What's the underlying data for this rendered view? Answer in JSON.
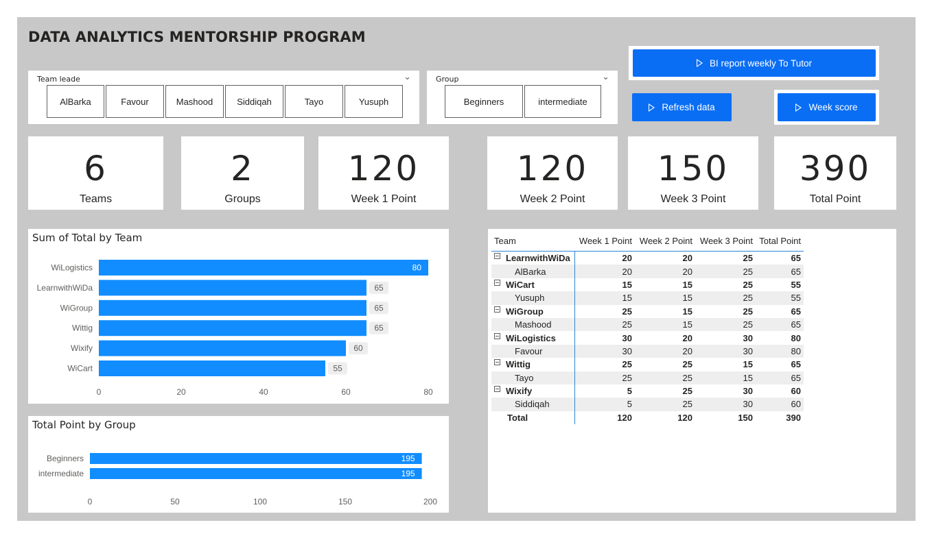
{
  "title": "DATA ANALYTICS MENTORSHIP PROGRAM",
  "team_slicer": {
    "label": "Team leade",
    "options": [
      "AlBarka",
      "Favour",
      "Mashood",
      "Siddiqah",
      "Tayo",
      "Yusuph"
    ]
  },
  "group_slicer": {
    "label": "Group",
    "options": [
      "Beginners",
      "intermediate"
    ]
  },
  "buttons": {
    "bi_report": "BI report weekly To Tutor",
    "refresh": "Refresh data",
    "week_score": "Week score"
  },
  "cards": [
    {
      "value": "6",
      "label": "Teams"
    },
    {
      "value": "2",
      "label": "Groups"
    },
    {
      "value": "120",
      "label": "Week 1 Point"
    },
    {
      "value": "120",
      "label": "Week 2 Point"
    },
    {
      "value": "150",
      "label": "Week 3 Point"
    },
    {
      "value": "390",
      "label": "Total Point"
    }
  ],
  "colors": {
    "bar": "#118dff",
    "button": "#0a6ef5",
    "background": "#c8c8c8"
  },
  "chart_data": [
    {
      "type": "bar",
      "orientation": "horizontal",
      "title": "Sum of Total by Team",
      "categories": [
        "WiLogistics",
        "LearnwithWiDa",
        "WiGroup",
        "Wittig",
        "Wixify",
        "WiCart"
      ],
      "values": [
        80,
        65,
        65,
        65,
        60,
        55
      ],
      "xlim": [
        0,
        80
      ],
      "xticks": [
        "0",
        "20",
        "40",
        "60",
        "80"
      ]
    },
    {
      "type": "bar",
      "orientation": "horizontal",
      "title": "Total Point by Group",
      "categories": [
        "Beginners",
        "intermediate"
      ],
      "values": [
        195,
        195
      ],
      "xlim": [
        0,
        200
      ],
      "xticks": [
        "0",
        "50",
        "100",
        "150",
        "200"
      ]
    }
  ],
  "table": {
    "headers": [
      "Team",
      "Week 1 Point",
      "Week 2 Point",
      "Week 3 Point",
      "Total Point"
    ],
    "rows": [
      {
        "kind": "grp",
        "cells": [
          "LearnwithWiDa",
          "20",
          "20",
          "25",
          "65"
        ]
      },
      {
        "kind": "child",
        "cells": [
          "AlBarka",
          "20",
          "20",
          "25",
          "65"
        ]
      },
      {
        "kind": "grp",
        "cells": [
          "WiCart",
          "15",
          "15",
          "25",
          "55"
        ]
      },
      {
        "kind": "child",
        "cells": [
          "Yusuph",
          "15",
          "15",
          "25",
          "55"
        ]
      },
      {
        "kind": "grp",
        "cells": [
          "WiGroup",
          "25",
          "15",
          "25",
          "65"
        ]
      },
      {
        "kind": "child",
        "cells": [
          "Mashood",
          "25",
          "15",
          "25",
          "65"
        ]
      },
      {
        "kind": "grp",
        "cells": [
          "WiLogistics",
          "30",
          "20",
          "30",
          "80"
        ]
      },
      {
        "kind": "child",
        "cells": [
          "Favour",
          "30",
          "20",
          "30",
          "80"
        ]
      },
      {
        "kind": "grp",
        "cells": [
          "Wittig",
          "25",
          "25",
          "15",
          "65"
        ]
      },
      {
        "kind": "child",
        "cells": [
          "Tayo",
          "25",
          "25",
          "15",
          "65"
        ]
      },
      {
        "kind": "grp",
        "cells": [
          "Wixify",
          "5",
          "25",
          "30",
          "60"
        ]
      },
      {
        "kind": "child",
        "cells": [
          "Siddiqah",
          "5",
          "25",
          "30",
          "60"
        ]
      },
      {
        "kind": "total",
        "cells": [
          "Total",
          "120",
          "120",
          "150",
          "390"
        ]
      }
    ]
  }
}
